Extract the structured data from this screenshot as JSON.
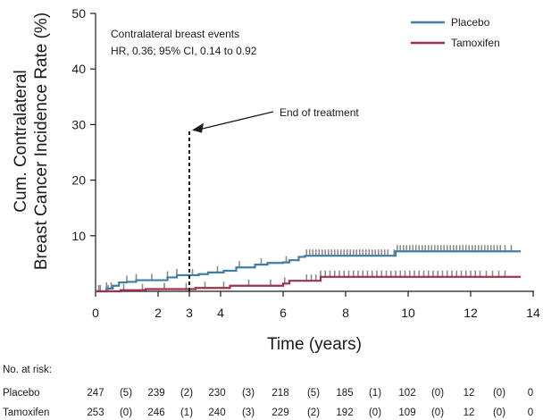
{
  "chart_data": {
    "type": "line",
    "ylabel_line1": "Cum. Contralateral",
    "ylabel_line2": "Breast Cancer Incidence Rate (%)",
    "xlabel": "Time (years)",
    "xlim": [
      0,
      14
    ],
    "ylim": [
      0,
      50
    ],
    "x_ticks": [
      0,
      2,
      3,
      4,
      6,
      8,
      10,
      12,
      14
    ],
    "y_ticks": [
      10,
      20,
      30,
      40,
      50
    ],
    "annotation_title": "Contralateral breast events",
    "annotation_hr": "HR, 0.36; 95% CI, 0.14 to 0.92",
    "end_of_treatment": {
      "label": "End of treatment",
      "x": 3,
      "y_top": 29
    },
    "colors": {
      "placebo": "#3f7fa6",
      "tamoxifen": "#a0304a",
      "censor": "#8a8a8a",
      "axis": "#1a1a1a"
    },
    "series": [
      {
        "name": "Placebo",
        "color": "#3f7fa6",
        "x": [
          0,
          0.35,
          0.55,
          0.75,
          1.0,
          1.3,
          2.3,
          2.6,
          3.3,
          3.6,
          4.1,
          4.5,
          5.1,
          5.5,
          6.0,
          6.2,
          6.5,
          6.7,
          9.6,
          13.6
        ],
        "y": [
          0,
          0.5,
          1.0,
          1.6,
          1.7,
          2.0,
          2.5,
          2.9,
          3.1,
          3.4,
          3.7,
          4.3,
          4.8,
          5.1,
          5.2,
          5.6,
          6.2,
          6.4,
          7.2,
          7.2
        ]
      },
      {
        "name": "Tamoxifen",
        "color": "#a0304a",
        "x": [
          0,
          0.8,
          1.6,
          3.2,
          4.3,
          6.0,
          6.2,
          7.2,
          9.4,
          13.6
        ],
        "y": [
          0,
          0.2,
          0.4,
          0.6,
          1.0,
          1.4,
          1.9,
          2.6,
          2.6,
          2.6
        ]
      }
    ],
    "censor_marks": {
      "Placebo": [
        0.15,
        0.35,
        0.5,
        1.0,
        1.3,
        1.8,
        2.3,
        2.6,
        3.1,
        3.9,
        4.6,
        5.3,
        6.1,
        6.75,
        6.85,
        6.95,
        7.05,
        7.15,
        7.25,
        7.35,
        7.45,
        7.55,
        7.65,
        7.75,
        7.85,
        7.95,
        8.05,
        8.15,
        8.25,
        8.35,
        8.45,
        8.55,
        8.65,
        8.75,
        8.85,
        8.95,
        9.05,
        9.15,
        9.25,
        9.35,
        9.55,
        9.65,
        9.75,
        9.85,
        9.95,
        10.05,
        10.15,
        10.25,
        10.35,
        10.45,
        10.55,
        10.65,
        10.75,
        10.85,
        10.95,
        11.05,
        11.15,
        11.25,
        11.35,
        11.45,
        11.55,
        11.65,
        11.75,
        11.85,
        11.95,
        12.05,
        12.15,
        12.25,
        12.35,
        12.45,
        12.55,
        12.65,
        12.75,
        12.85,
        12.95,
        13.1,
        13.3
      ],
      "Tamoxifen": [
        0.1,
        0.4,
        0.9,
        1.5,
        2.2,
        2.9,
        3.5,
        4.1,
        4.9,
        5.6,
        6.05,
        6.75,
        6.9,
        7.05,
        7.2,
        7.35,
        7.5,
        7.65,
        7.8,
        7.95,
        8.1,
        8.25,
        8.4,
        8.55,
        8.7,
        8.85,
        9.0,
        9.15,
        9.3,
        9.45,
        9.6,
        9.75,
        9.9,
        10.05,
        10.2,
        10.35,
        10.5,
        10.65,
        10.8,
        10.95,
        11.1,
        11.25,
        11.4,
        11.55,
        11.7,
        11.85,
        12.0,
        12.15,
        12.3,
        12.5,
        12.7,
        12.9,
        13.1
      ]
    },
    "legend": [
      "Placebo",
      "Tamoxifen"
    ],
    "risk_table": {
      "title": "No. at risk:",
      "rows": [
        {
          "label": "Placebo",
          "cells": [
            "247",
            "(5)",
            "239",
            "(2)",
            "230",
            "(3)",
            "218",
            "(5)",
            "185",
            "(1)",
            "102",
            "(0)",
            "12",
            "(0)",
            "0"
          ]
        },
        {
          "label": "Tamoxifen",
          "cells": [
            "253",
            "(0)",
            "246",
            "(1)",
            "240",
            "(3)",
            "229",
            "(2)",
            "192",
            "(0)",
            "109",
            "(0)",
            "12",
            "(0)",
            "0"
          ]
        }
      ]
    }
  }
}
